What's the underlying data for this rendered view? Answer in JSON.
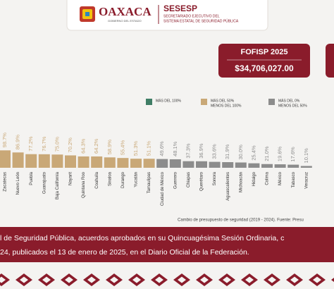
{
  "header": {
    "logo_title": "OAXACA",
    "logo_subtitle": "GOBIERNO DEL ESTADO",
    "org_title": "SESESP",
    "org_subtitle_lines": [
      "SECRETARIADO EJECUTIVO DEL",
      "SISTEMA ESTATAL DE SEGURIDAD PÚBLICA"
    ]
  },
  "fund_box": {
    "title": "FOFISP 2025",
    "amount": "$34,706,027.00"
  },
  "chart_data": {
    "type": "bar",
    "legend": [
      {
        "lines": [
          "MÁS DEL 100%"
        ],
        "color": "#3f7d65"
      },
      {
        "lines": [
          "MÁS DEL 50%",
          "MENOS DEL 100%"
        ],
        "color": "#c9a877"
      },
      {
        "lines": [
          "MÁS DEL 0%",
          "MENOS DEL 50%"
        ],
        "color": "#8c8c8c"
      }
    ],
    "categories": [
      "Zacatecas",
      "Nuevo León",
      "Puebla",
      "Guanajuato",
      "Baja California",
      "Nayarit",
      "Quintana Roo",
      "Coahuila",
      "Sinaloa",
      "Durango",
      "Yucatán",
      "Tamaulipas",
      "Ciudad de México",
      "Guerrero",
      "Chiapas",
      "Querétaro",
      "Sonora",
      "Aguascalientes",
      "Michoacán",
      "Hidalgo",
      "Colima",
      "México",
      "Tabasco",
      "Veracruz"
    ],
    "values": [
      98.7,
      86.9,
      77.2,
      76.7,
      75.0,
      70.2,
      64.3,
      64.2,
      58.9,
      55.4,
      51.3,
      51.1,
      49.6,
      48.1,
      37.3,
      36.9,
      33.6,
      31.9,
      30.0,
      25.4,
      21.0,
      19.6,
      17.6,
      10.1
    ],
    "value_labels": [
      "98.7%",
      "86.9%",
      "77.2%",
      "76.7%",
      "75.0%",
      "70.2%",
      "64.3%",
      "64.2%",
      "58.9%",
      "55.4%",
      "51.3%",
      "51.1%",
      "49.6%",
      "48.1%",
      "37.3%",
      "36.9%",
      "33.6%",
      "31.9%",
      "30.0%",
      "25.4%",
      "21.0%",
      "19.6%",
      "17.6%",
      "10.1%"
    ],
    "colors": [
      "#c9a877",
      "#c9a877",
      "#c9a877",
      "#c9a877",
      "#c9a877",
      "#c9a877",
      "#c9a877",
      "#c9a877",
      "#c9a877",
      "#c9a877",
      "#c9a877",
      "#c9a877",
      "#8c8c8c",
      "#8c8c8c",
      "#8c8c8c",
      "#8c8c8c",
      "#8c8c8c",
      "#8c8c8c",
      "#8c8c8c",
      "#8c8c8c",
      "#8c8c8c",
      "#8c8c8c",
      "#8c8c8c",
      "#8c8c8c"
    ],
    "note": "Cambio de presupuesto de seguridad (2019 - 2024). Fuente: Presu"
  },
  "footer": {
    "lines": [
      "l de Seguridad Pública,  acuerdos aprobados en su Quincuagésima Sesión Ordinaria, c",
      "24, publicados el 13 de enero de 2025, en el Diario Oficial de la Federación."
    ]
  }
}
